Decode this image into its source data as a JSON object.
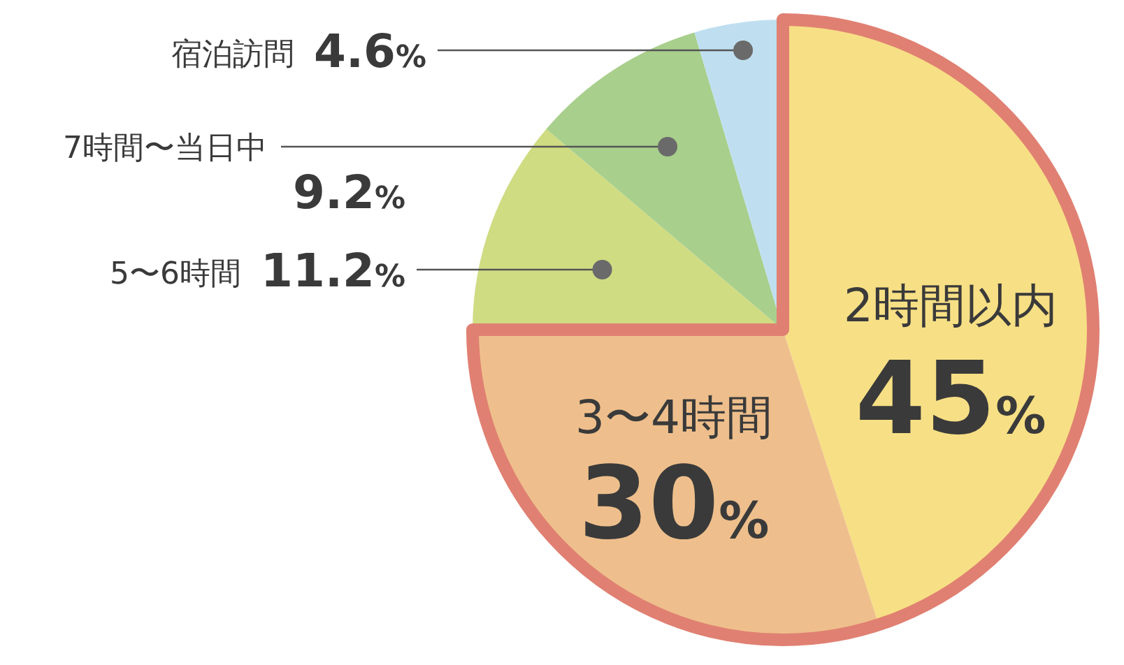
{
  "chart_data": {
    "type": "pie",
    "categories": [
      "2時間以内",
      "3〜4時間",
      "5〜6時間",
      "7時間〜当日中",
      "宿泊訪問"
    ],
    "values": [
      45,
      30,
      11.2,
      9.2,
      4.6
    ],
    "colors": [
      "#f7df85",
      "#eebf8c",
      "#d0dc82",
      "#a8cf8c",
      "#bfdff0"
    ],
    "value_labels": [
      "45%",
      "30%",
      "11.2%",
      "9.2%",
      "4.6%"
    ]
  }
}
